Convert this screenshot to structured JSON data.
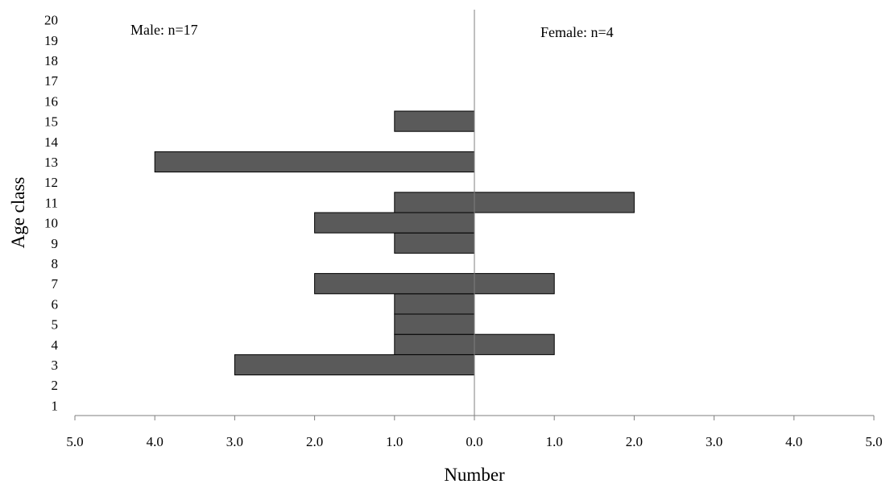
{
  "chart_data": {
    "type": "bar",
    "orientation": "horizontal",
    "layout": "population-pyramid",
    "categories": [
      "1",
      "2",
      "3",
      "4",
      "5",
      "6",
      "7",
      "8",
      "9",
      "10",
      "11",
      "12",
      "13",
      "14",
      "15",
      "16",
      "17",
      "18",
      "19",
      "20"
    ],
    "series": [
      {
        "name": "Male",
        "side": "left",
        "values": [
          0,
          0,
          3,
          1,
          1,
          1,
          2,
          0,
          1,
          2,
          1,
          0,
          4,
          0,
          1,
          0,
          0,
          0,
          0,
          0
        ]
      },
      {
        "name": "Female",
        "side": "right",
        "values": [
          0,
          0,
          0,
          1,
          0,
          0,
          1,
          0,
          0,
          0,
          2,
          0,
          0,
          0,
          0,
          0,
          0,
          0,
          0,
          0
        ]
      }
    ],
    "annotations": {
      "left": "Male: n=17",
      "right": "Female: n=4"
    },
    "xlabel": "Number",
    "ylabel": "Age class",
    "xlim": [
      -5,
      5
    ],
    "x_ticks": [
      "5.0",
      "4.0",
      "3.0",
      "2.0",
      "1.0",
      "0.0",
      "1.0",
      "2.0",
      "3.0",
      "4.0",
      "5.0"
    ],
    "bar_color": "#5a5a5a",
    "bar_edge_color": "#000000",
    "grid": false,
    "legend": "none"
  }
}
